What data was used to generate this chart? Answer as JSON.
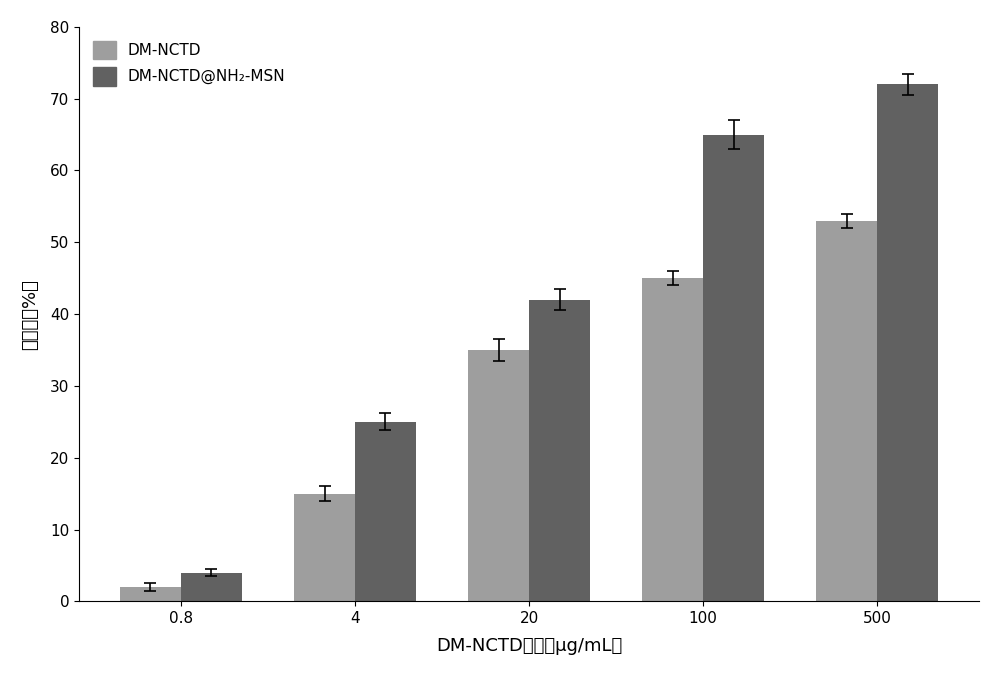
{
  "categories": [
    "0.8",
    "4",
    "20",
    "100",
    "500"
  ],
  "series1_values": [
    2.0,
    15.0,
    35.0,
    45.0,
    53.0
  ],
  "series1_errors": [
    0.5,
    1.0,
    1.5,
    1.0,
    1.0
  ],
  "series2_values": [
    4.0,
    25.0,
    42.0,
    65.0,
    72.0
  ],
  "series2_errors": [
    0.5,
    1.2,
    1.5,
    2.0,
    1.5
  ],
  "series1_color": "#9E9E9E",
  "series2_color": "#616161",
  "series1_label": "DM-NCTD",
  "series2_label": "DM-NCTD@NH₂-MSN",
  "xlabel": "DM-NCTD浓度（μg/mL）",
  "ylabel": "抑癌率（%）",
  "ylim": [
    0,
    80
  ],
  "yticks": [
    0,
    10,
    20,
    30,
    40,
    50,
    60,
    70,
    80
  ],
  "bar_width": 0.35,
  "figure_width": 10.0,
  "figure_height": 6.76,
  "background_color": "#ffffff",
  "error_capsize": 4,
  "legend_fontsize": 11,
  "axis_fontsize": 13,
  "tick_fontsize": 11
}
